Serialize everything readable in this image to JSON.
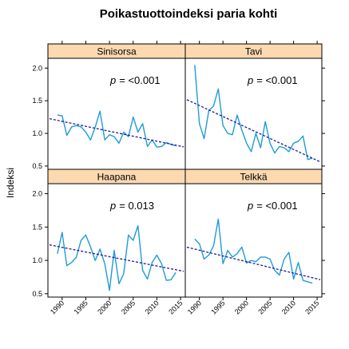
{
  "title": "Poikastuottoindeksi paria kohti",
  "ylabel": "Indeksi",
  "colors": {
    "line": "#1f9bd7",
    "trend": "#1b1b9e",
    "strip": "#fdd9b0",
    "frame": "#000000"
  },
  "chart_data": {
    "type": "line",
    "layout": "2x2 trellis",
    "title": "Poikastuottoindeksi paria kohti",
    "xlabel": "",
    "ylabel": "Indeksi",
    "xlim": [
      1987,
      2016
    ],
    "ylim": [
      0.45,
      2.15
    ],
    "xticks": [
      1990,
      1995,
      2000,
      2005,
      2010,
      2015
    ],
    "yticks": [
      0.5,
      1.0,
      1.5,
      2.0
    ],
    "ytick_labels": [
      "0.5",
      "1.0",
      "1.5",
      "2.0"
    ],
    "x": [
      1989,
      1990,
      1991,
      1992,
      1993,
      1994,
      1995,
      1996,
      1997,
      1998,
      1999,
      2000,
      2001,
      2002,
      2003,
      2004,
      2005,
      2006,
      2007,
      2008,
      2009,
      2010,
      2011,
      2012,
      2013,
      2014
    ],
    "panels": [
      {
        "name": "Sinisorsa",
        "p_label": "p",
        "p_value": "= <0.001",
        "values": [
          1.28,
          1.27,
          0.97,
          1.1,
          1.12,
          1.1,
          1.02,
          0.9,
          1.1,
          1.34,
          0.9,
          0.98,
          0.95,
          0.85,
          1.02,
          0.95,
          1.25,
          1.02,
          1.15,
          0.8,
          0.9,
          0.79,
          0.8,
          0.86,
          0.83,
          0.81
        ],
        "trend": [
          1.2,
          0.82
        ]
      },
      {
        "name": "Tavi",
        "p_label": "p",
        "p_value": "= <0.001",
        "values": [
          2.05,
          1.15,
          0.92,
          1.35,
          1.42,
          1.68,
          1.12,
          1.0,
          0.98,
          1.28,
          1.05,
          0.85,
          0.72,
          1.0,
          0.78,
          1.18,
          0.85,
          0.7,
          0.8,
          0.78,
          0.72,
          0.85,
          0.88,
          0.96,
          0.6,
          0.62
        ],
        "trend": [
          1.46,
          0.62
        ]
      },
      {
        "name": "Haapana",
        "p_label": "p",
        "p_value": "= 0.013",
        "values": [
          1.1,
          1.42,
          0.92,
          0.97,
          1.05,
          1.3,
          1.38,
          1.2,
          1.0,
          1.17,
          0.95,
          0.55,
          1.15,
          0.65,
          0.8,
          1.38,
          1.3,
          1.52,
          0.85,
          0.72,
          0.97,
          1.08,
          0.95,
          0.7,
          0.71,
          0.82
        ],
        "trend": [
          1.21,
          0.86
        ]
      },
      {
        "name": "Telkkä",
        "p_label": "p",
        "p_value": "= <0.001",
        "values": [
          1.32,
          1.25,
          1.02,
          1.08,
          1.22,
          1.62,
          0.95,
          1.15,
          1.05,
          1.1,
          1.2,
          0.96,
          1.0,
          0.98,
          1.05,
          1.05,
          1.02,
          0.85,
          0.78,
          1.02,
          1.12,
          0.72,
          0.97,
          0.7,
          0.68,
          0.66
        ],
        "trend": [
          1.17,
          0.74
        ]
      }
    ]
  }
}
